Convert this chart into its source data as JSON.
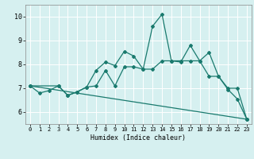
{
  "title": "",
  "xlabel": "Humidex (Indice chaleur)",
  "bg_color": "#d6f0f0",
  "grid_color": "#ffffff",
  "line_color": "#1a7a6e",
  "xlim": [
    -0.5,
    23.5
  ],
  "ylim": [
    5.5,
    10.5
  ],
  "yticks": [
    6,
    7,
    8,
    9,
    10
  ],
  "xticks": [
    0,
    1,
    2,
    3,
    4,
    5,
    6,
    7,
    8,
    9,
    10,
    11,
    12,
    13,
    14,
    15,
    16,
    17,
    18,
    19,
    20,
    21,
    22,
    23
  ],
  "line1_x": [
    0,
    1,
    2,
    3,
    4,
    5,
    6,
    7,
    8,
    9,
    10,
    11,
    12,
    13,
    14,
    15,
    16,
    17,
    18,
    19,
    20,
    21,
    22,
    23
  ],
  "line1_y": [
    7.1,
    6.8,
    6.9,
    7.1,
    6.7,
    6.85,
    7.05,
    7.75,
    8.1,
    7.95,
    8.55,
    8.35,
    7.8,
    9.6,
    10.1,
    8.15,
    8.1,
    8.8,
    8.15,
    8.5,
    7.5,
    6.95,
    6.55,
    5.7
  ],
  "line2_x": [
    0,
    3,
    4,
    5,
    6,
    7,
    8,
    9,
    10,
    11,
    12,
    13,
    14,
    15,
    16,
    17,
    18,
    19,
    20,
    21,
    22,
    23
  ],
  "line2_y": [
    7.1,
    7.1,
    6.7,
    6.85,
    7.05,
    7.1,
    7.75,
    7.1,
    7.9,
    7.9,
    7.8,
    7.8,
    8.15,
    8.15,
    8.15,
    8.15,
    8.15,
    7.5,
    7.5,
    7.0,
    7.0,
    5.7
  ],
  "line3_x": [
    0,
    23
  ],
  "line3_y": [
    7.1,
    5.7
  ]
}
